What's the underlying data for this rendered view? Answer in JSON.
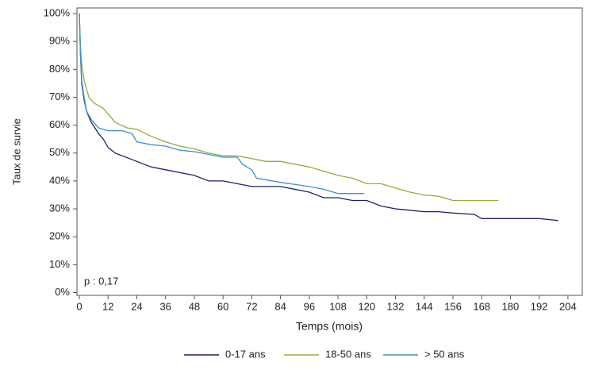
{
  "chart_data": {
    "type": "line",
    "y_label": "Taux de survie",
    "x_label": "Temps (mois)",
    "annotation": "p : 0,17",
    "xlim": [
      -1,
      210
    ],
    "ylim": [
      -1,
      102
    ],
    "xticks": [
      0,
      12,
      24,
      36,
      48,
      60,
      72,
      84,
      96,
      108,
      120,
      132,
      144,
      156,
      168,
      180,
      192,
      204
    ],
    "yticks": [
      {
        "value": 0,
        "label": "0%"
      },
      {
        "value": 10,
        "label": "10%"
      },
      {
        "value": 20,
        "label": "20%"
      },
      {
        "value": 30,
        "label": "30%"
      },
      {
        "value": 40,
        "label": "40%"
      },
      {
        "value": 50,
        "label": "50%"
      },
      {
        "value": 60,
        "label": "60%"
      },
      {
        "value": 70,
        "label": "70%"
      },
      {
        "value": 80,
        "label": "80%"
      },
      {
        "value": 90,
        "label": "90%"
      },
      {
        "value": 100,
        "label": "100%"
      }
    ],
    "series": [
      {
        "name": "0-17 ans",
        "color": "#1f1f6e",
        "x": [
          0,
          0.5,
          1,
          2,
          3,
          5,
          8,
          10,
          12,
          15,
          18,
          24,
          30,
          36,
          42,
          48,
          54,
          60,
          66,
          72,
          84,
          96,
          102,
          108,
          114,
          120,
          126,
          132,
          138,
          144,
          150,
          156,
          165,
          168,
          192,
          198,
          200
        ],
        "values": [
          100,
          85,
          75,
          69,
          65,
          61,
          57,
          55,
          52,
          50,
          49,
          47,
          45,
          44,
          43,
          42,
          40,
          40,
          39,
          38,
          38,
          36,
          34,
          34,
          33,
          33,
          31,
          30,
          29.5,
          29,
          29,
          28.5,
          28,
          26.5,
          26.5,
          26,
          25.8
        ]
      },
      {
        "name": "18-50 ans",
        "color": "#8fb03a",
        "x": [
          0,
          0.5,
          1,
          2,
          4,
          6,
          10,
          12,
          15,
          20,
          24,
          30,
          36,
          42,
          48,
          54,
          60,
          66,
          72,
          78,
          84,
          90,
          96,
          102,
          108,
          114,
          120,
          126,
          132,
          138,
          144,
          150,
          156,
          168,
          175
        ],
        "values": [
          100,
          88,
          82,
          76,
          70,
          68,
          66,
          64,
          61,
          59,
          58.5,
          56,
          54,
          52.5,
          51.5,
          50,
          49,
          49,
          48,
          47,
          47,
          46,
          45,
          43.5,
          42,
          41,
          39,
          39,
          37.5,
          36,
          35,
          34.5,
          33,
          33,
          33
        ]
      },
      {
        "name": "> 50 ans",
        "color": "#3b8fd9",
        "x": [
          0,
          0.5,
          1,
          2,
          3,
          5,
          8,
          12,
          18,
          22,
          24,
          30,
          36,
          42,
          48,
          54,
          60,
          66,
          68,
          72,
          74,
          84,
          96,
          102,
          108,
          114,
          119
        ],
        "values": [
          100,
          85,
          76,
          70,
          65,
          62,
          59,
          58,
          58,
          57,
          54,
          53,
          52.5,
          51,
          50.5,
          49.5,
          48.5,
          48.5,
          46,
          44,
          41,
          39.5,
          38,
          37,
          35.5,
          35.5,
          35.5
        ]
      }
    ]
  }
}
